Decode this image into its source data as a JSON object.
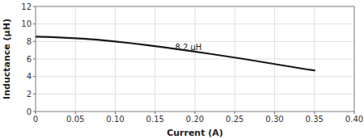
{
  "chart_data": {
    "type": "line",
    "xlabel": "Current (A)",
    "ylabel": "Inductance (μH)",
    "annotations": [
      {
        "text": "8.2 μH",
        "x": 0.175,
        "y": 7.4
      }
    ],
    "x": [
      0.0,
      0.02,
      0.04,
      0.06,
      0.08,
      0.1,
      0.12,
      0.14,
      0.16,
      0.18,
      0.2,
      0.22,
      0.24,
      0.26,
      0.28,
      0.3,
      0.32,
      0.34,
      0.35
    ],
    "values": [
      8.55,
      8.5,
      8.42,
      8.32,
      8.18,
      8.0,
      7.8,
      7.58,
      7.35,
      7.1,
      6.85,
      6.58,
      6.3,
      6.02,
      5.72,
      5.42,
      5.12,
      4.82,
      4.7
    ],
    "color": "#1a1a1a",
    "xlim": [
      0,
      0.4
    ],
    "ylim": [
      0,
      12
    ],
    "xticks": [
      0,
      0.05,
      {
        "value": 0.1,
        "label": "0.10"
      },
      0.15,
      {
        "value": 0.2,
        "label": "0.20"
      },
      0.25,
      {
        "value": 0.3,
        "label": "0.30"
      },
      0.35,
      {
        "value": 0.4,
        "label": "0.40"
      }
    ],
    "yticks": [
      0,
      2,
      4,
      6,
      8,
      10,
      12
    ],
    "grid": true
  }
}
